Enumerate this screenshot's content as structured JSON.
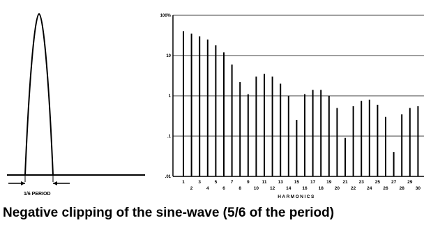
{
  "caption": "Negative clipping of the sine-wave (5/6 of the period)",
  "waveform": {
    "width_label": "1/6 PERIOD"
  },
  "chart_data": {
    "type": "bar",
    "title": "",
    "xlabel": "HARMONICS",
    "ylabel": "",
    "yscale": "log",
    "ylim": [
      0.01,
      100
    ],
    "y_tick_labels": [
      "100%",
      "10",
      "1",
      ".1",
      ".01"
    ],
    "y_tick_values": [
      100,
      10,
      1,
      0.1,
      0.01
    ],
    "grid": "horizontal at decades",
    "categories": [
      "1",
      "2",
      "3",
      "4",
      "5",
      "6",
      "7",
      "8",
      "9",
      "10",
      "11",
      "12",
      "13",
      "14",
      "15",
      "16",
      "17",
      "18",
      "19",
      "20",
      "21",
      "22",
      "23",
      "24",
      "25",
      "26",
      "27",
      "28",
      "29",
      "30"
    ],
    "x_tick_labels_top": [
      "1",
      "3",
      "5",
      "7",
      "9",
      "11",
      "13",
      "15",
      "17",
      "19",
      "21",
      "23",
      "25",
      "27",
      "29"
    ],
    "x_tick_labels_bottom": [
      "2",
      "4",
      "6",
      "8",
      "10",
      "12",
      "14",
      "16",
      "18",
      "20",
      "22",
      "24",
      "26",
      "28",
      "30"
    ],
    "values": [
      40,
      35,
      30,
      25,
      18,
      12,
      6,
      2.2,
      1.1,
      3,
      3.5,
      3,
      2,
      1,
      0.25,
      1.1,
      1.4,
      1.4,
      1,
      0.5,
      0.09,
      0.55,
      0.75,
      0.8,
      0.6,
      0.3,
      0.04,
      0.35,
      0.5,
      0.55
    ]
  }
}
